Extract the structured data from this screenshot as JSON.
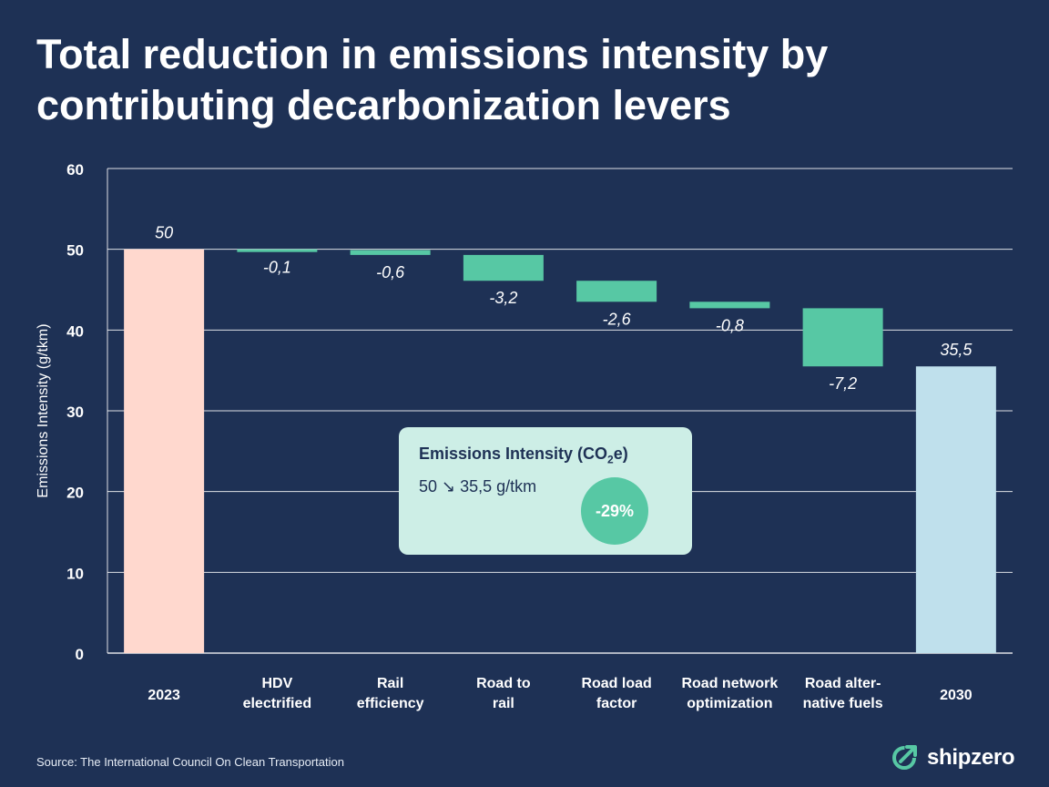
{
  "title": {
    "line1": "Total reduction in emissions intensity by",
    "line2": "contributing decarbonization levers"
  },
  "source": "Source: The International Council On Clean Transportation",
  "logo": {
    "text": "shipzero",
    "icon": "shipzero-logo-icon"
  },
  "callout": {
    "title_prefix": "Emissions Intensity (CO",
    "title_sub": "2",
    "title_suffix": "e)",
    "value": "50 ↘ 35,5 g/tkm",
    "badge": "-29%"
  },
  "colors": {
    "background": "#1e3155",
    "start_bar": "#ffd8ce",
    "end_bar": "#bfe0ec",
    "delta_bar": "#57c8a4",
    "grid": "#ffffff"
  },
  "chart_data": {
    "type": "waterfall",
    "ylabel": "Emissions Intensity (g/tkm)",
    "ylim": [
      0,
      60
    ],
    "yticks": [
      0,
      10,
      20,
      30,
      40,
      50,
      60
    ],
    "grid": true,
    "categories": [
      [
        "2023"
      ],
      [
        "HDV",
        "electrified"
      ],
      [
        "Rail",
        "efficiency"
      ],
      [
        "Road to",
        "rail"
      ],
      [
        "Road load",
        "factor"
      ],
      [
        "Road network",
        "optimization"
      ],
      [
        "Road alter-",
        "native fuels"
      ],
      [
        "2030"
      ]
    ],
    "values": [
      50,
      -0.1,
      -0.6,
      -3.2,
      -2.6,
      -0.8,
      -7.2,
      35.5
    ],
    "labels": [
      "50",
      "-0,1",
      "-0,6",
      "-3,2",
      "-2,6",
      "-0,8",
      "-7,2",
      "35,5"
    ],
    "kinds": [
      "total",
      "delta",
      "delta",
      "delta",
      "delta",
      "delta",
      "delta",
      "total"
    ]
  }
}
